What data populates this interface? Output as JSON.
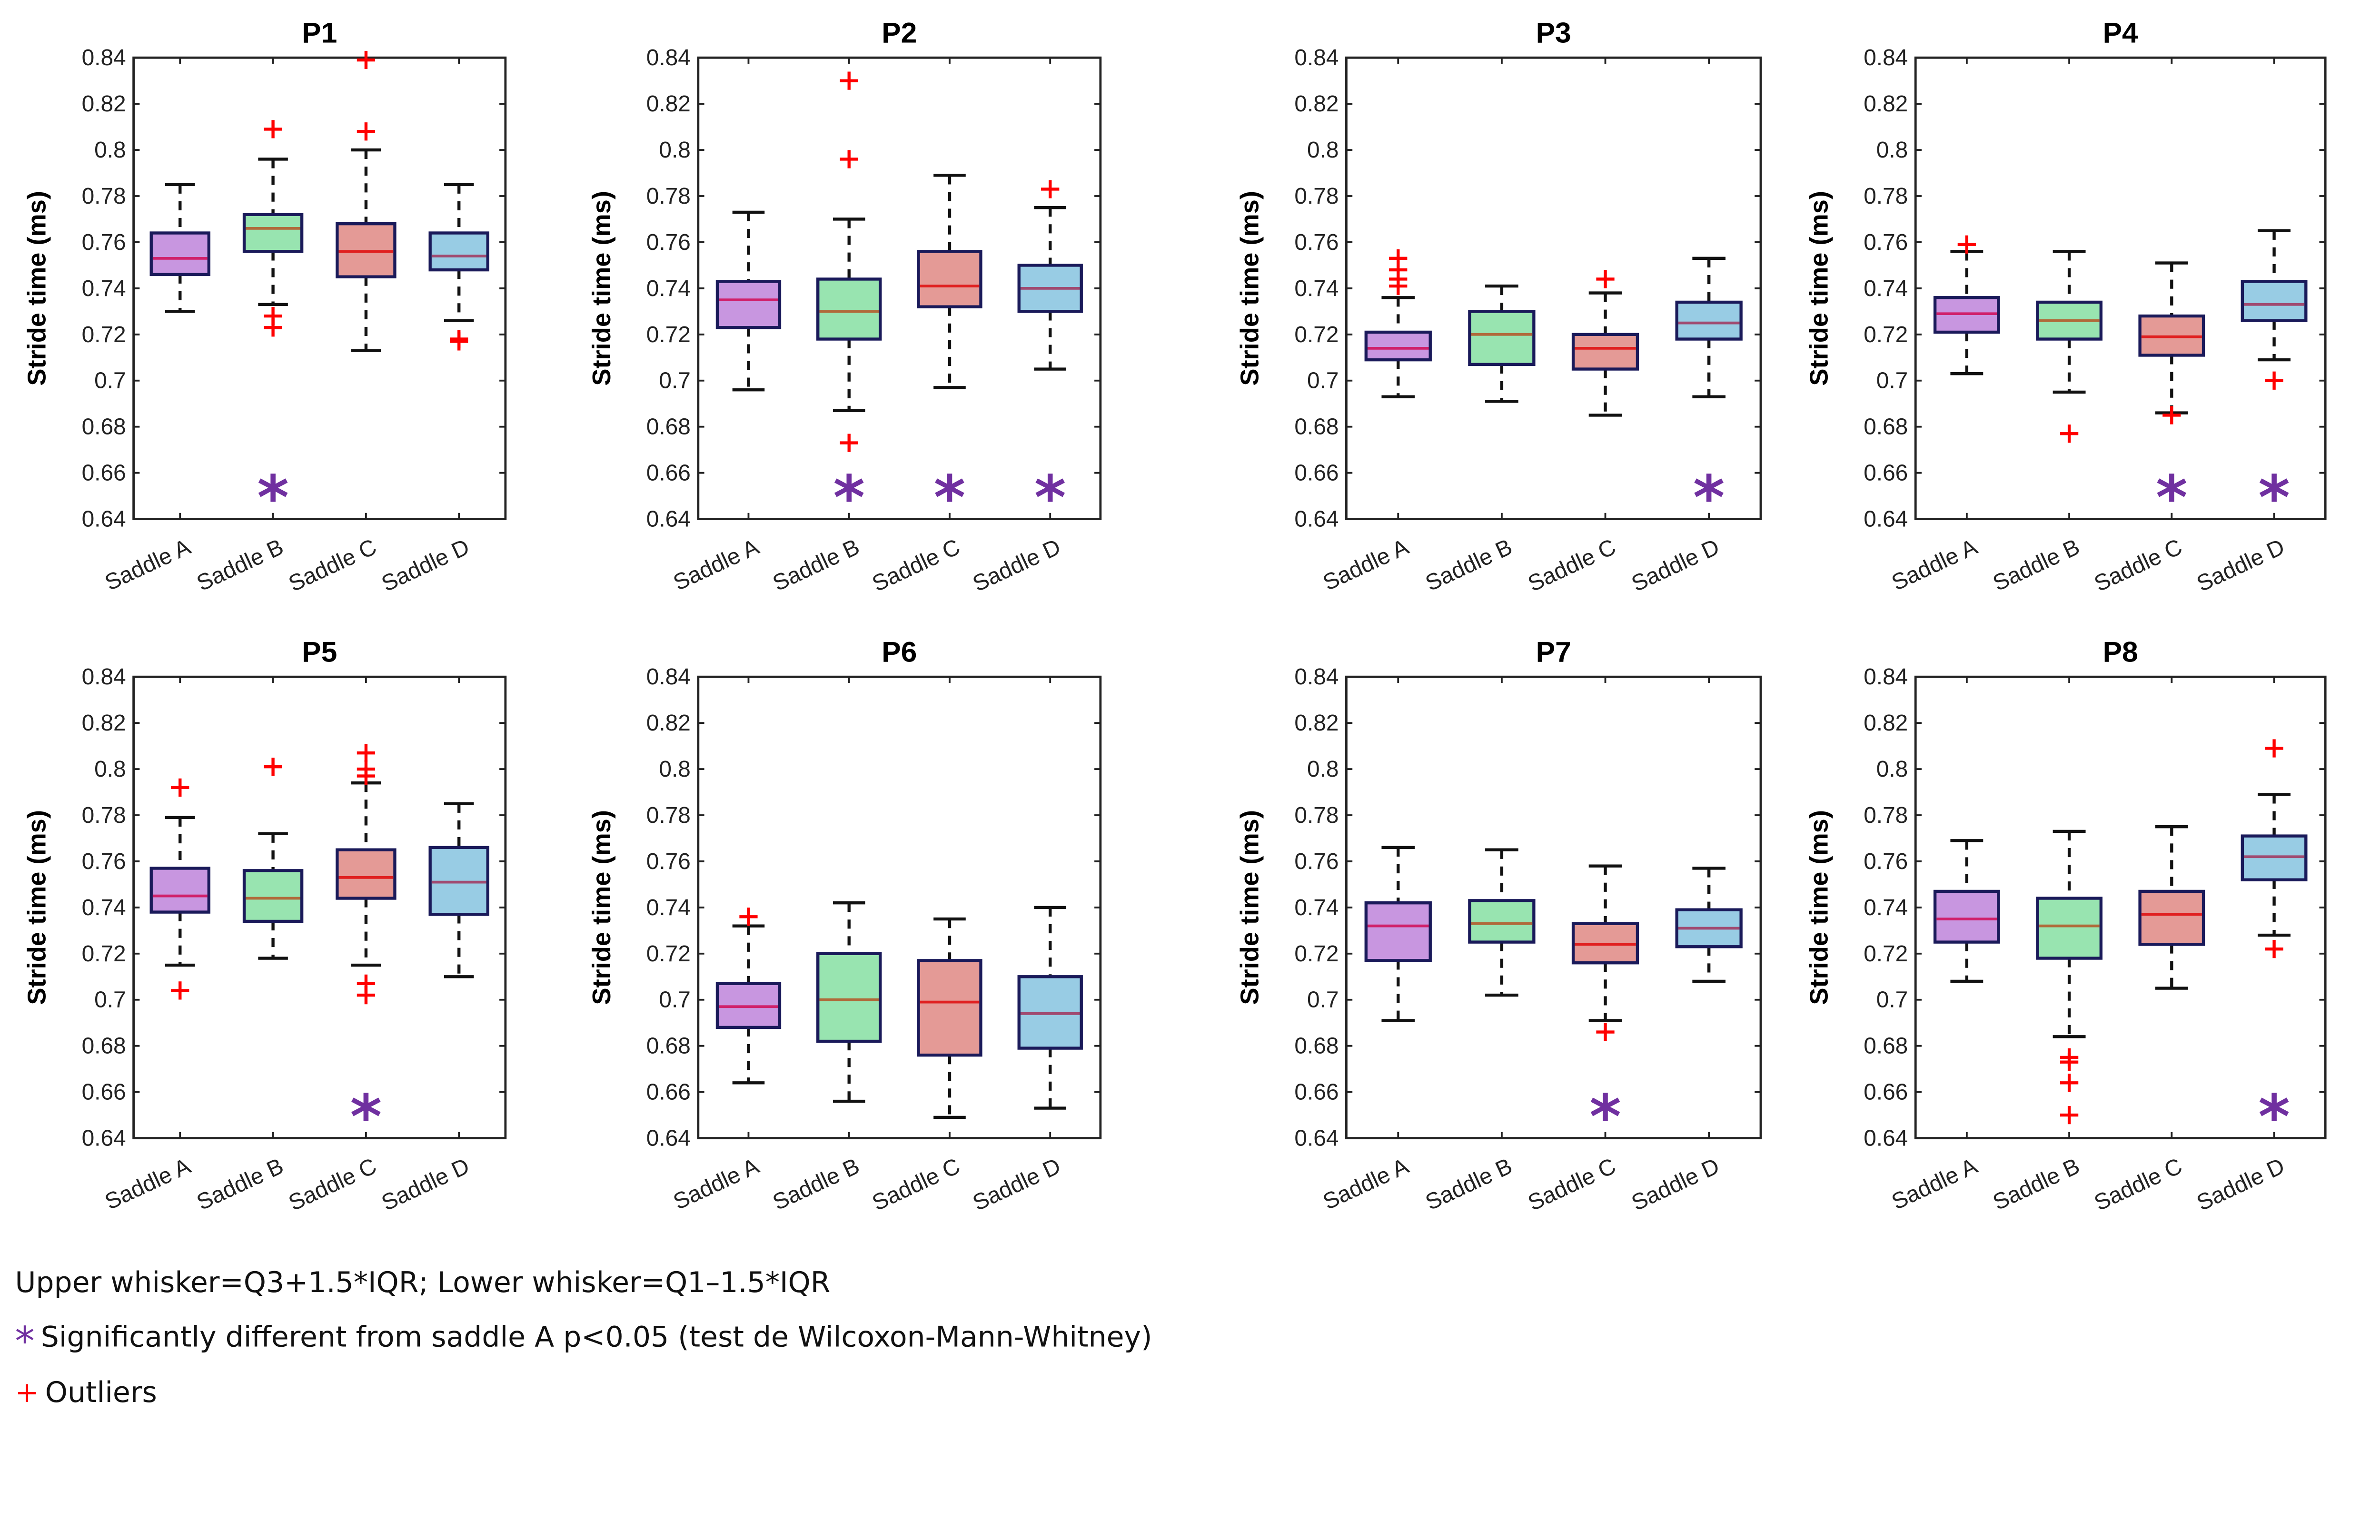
{
  "colors": {
    "box_fill": [
      "#c896e0",
      "#98e4b0",
      "#e49a96",
      "#98cce4"
    ],
    "median": [
      "#d0206a",
      "#b06a3a",
      "#e02020",
      "#a04a70"
    ],
    "box_edge": "#1a1a5a",
    "outlier": "#ff0000",
    "star": "#7030a0"
  },
  "legend": {
    "whisker_text": "Upper whisker=Q3+1.5*IQR; Lower whisker=Q1–1.5*IQR",
    "star_symbol": "*",
    "star_text": "Significantly different from saddle A p<0.05 (test de Wilcoxon-Mann-Whitney)",
    "outlier_symbol": "+",
    "outlier_text": "Outliers"
  },
  "chart_data": [
    {
      "type": "box",
      "title": "P1",
      "ylabel": "Stride time (ms)",
      "ylim": [
        0.64,
        0.84
      ],
      "yticks": [
        "0.64",
        "0.66",
        "0.68",
        "0.7",
        "0.72",
        "0.74",
        "0.76",
        "0.78",
        "0.8",
        "0.82",
        "0.84"
      ],
      "categories": [
        "Saddle A",
        "Saddle B",
        "Saddle C",
        "Saddle D"
      ],
      "boxes": [
        {
          "low": 0.73,
          "q1": 0.746,
          "median": 0.753,
          "q3": 0.764,
          "high": 0.785,
          "outliers": [],
          "significant": false
        },
        {
          "low": 0.733,
          "q1": 0.756,
          "median": 0.766,
          "q3": 0.772,
          "high": 0.796,
          "outliers": [
            0.809,
            0.728,
            0.723
          ],
          "significant": true
        },
        {
          "low": 0.713,
          "q1": 0.745,
          "median": 0.756,
          "q3": 0.768,
          "high": 0.8,
          "outliers": [
            0.839,
            0.808
          ],
          "significant": false
        },
        {
          "low": 0.726,
          "q1": 0.748,
          "median": 0.754,
          "q3": 0.764,
          "high": 0.785,
          "outliers": [
            0.718,
            0.717
          ],
          "significant": false
        }
      ]
    },
    {
      "type": "box",
      "title": "P2",
      "ylabel": "Stride time (ms)",
      "ylim": [
        0.64,
        0.84
      ],
      "yticks": [
        "0.64",
        "0.66",
        "0.68",
        "0.7",
        "0.72",
        "0.74",
        "0.76",
        "0.78",
        "0.8",
        "0.82",
        "0.84"
      ],
      "categories": [
        "Saddle A",
        "Saddle B",
        "Saddle C",
        "Saddle D"
      ],
      "boxes": [
        {
          "low": 0.696,
          "q1": 0.723,
          "median": 0.735,
          "q3": 0.743,
          "high": 0.773,
          "outliers": [],
          "significant": false
        },
        {
          "low": 0.687,
          "q1": 0.718,
          "median": 0.73,
          "q3": 0.744,
          "high": 0.77,
          "outliers": [
            0.83,
            0.796,
            0.673
          ],
          "significant": true
        },
        {
          "low": 0.697,
          "q1": 0.732,
          "median": 0.741,
          "q3": 0.756,
          "high": 0.789,
          "outliers": [],
          "significant": true
        },
        {
          "low": 0.705,
          "q1": 0.73,
          "median": 0.74,
          "q3": 0.75,
          "high": 0.775,
          "outliers": [
            0.783
          ],
          "significant": true
        }
      ]
    },
    {
      "type": "box",
      "title": "P3",
      "ylabel": "Stride time (ms)",
      "ylim": [
        0.64,
        0.84
      ],
      "yticks": [
        "0.64",
        "0.66",
        "0.68",
        "0.7",
        "0.72",
        "0.74",
        "0.76",
        "0.78",
        "0.8",
        "0.82",
        "0.84"
      ],
      "categories": [
        "Saddle A",
        "Saddle B",
        "Saddle C",
        "Saddle D"
      ],
      "boxes": [
        {
          "low": 0.693,
          "q1": 0.709,
          "median": 0.714,
          "q3": 0.721,
          "high": 0.736,
          "outliers": [
            0.753,
            0.748,
            0.744,
            0.741
          ],
          "significant": false
        },
        {
          "low": 0.691,
          "q1": 0.707,
          "median": 0.72,
          "q3": 0.73,
          "high": 0.741,
          "outliers": [],
          "significant": false
        },
        {
          "low": 0.685,
          "q1": 0.705,
          "median": 0.714,
          "q3": 0.72,
          "high": 0.738,
          "outliers": [
            0.744
          ],
          "significant": false
        },
        {
          "low": 0.693,
          "q1": 0.718,
          "median": 0.725,
          "q3": 0.734,
          "high": 0.753,
          "outliers": [],
          "significant": true
        }
      ]
    },
    {
      "type": "box",
      "title": "P4",
      "ylabel": "Stride time (ms)",
      "ylim": [
        0.64,
        0.84
      ],
      "yticks": [
        "0.64",
        "0.66",
        "0.68",
        "0.7",
        "0.72",
        "0.74",
        "0.76",
        "0.78",
        "0.8",
        "0.82",
        "0.84"
      ],
      "categories": [
        "Saddle A",
        "Saddle B",
        "Saddle C",
        "Saddle D"
      ],
      "boxes": [
        {
          "low": 0.703,
          "q1": 0.721,
          "median": 0.729,
          "q3": 0.736,
          "high": 0.756,
          "outliers": [
            0.759
          ],
          "significant": false
        },
        {
          "low": 0.695,
          "q1": 0.718,
          "median": 0.726,
          "q3": 0.734,
          "high": 0.756,
          "outliers": [
            0.677
          ],
          "significant": false
        },
        {
          "low": 0.686,
          "q1": 0.711,
          "median": 0.719,
          "q3": 0.728,
          "high": 0.751,
          "outliers": [
            0.685
          ],
          "significant": true
        },
        {
          "low": 0.709,
          "q1": 0.726,
          "median": 0.733,
          "q3": 0.743,
          "high": 0.765,
          "outliers": [
            0.7
          ],
          "significant": true
        }
      ]
    },
    {
      "type": "box",
      "title": "P5",
      "ylabel": "Stride time (ms)",
      "ylim": [
        0.64,
        0.84
      ],
      "yticks": [
        "0.64",
        "0.66",
        "0.68",
        "0.7",
        "0.72",
        "0.74",
        "0.76",
        "0.78",
        "0.8",
        "0.82",
        "0.84"
      ],
      "categories": [
        "Saddle A",
        "Saddle B",
        "Saddle C",
        "Saddle D"
      ],
      "boxes": [
        {
          "low": 0.715,
          "q1": 0.738,
          "median": 0.745,
          "q3": 0.757,
          "high": 0.779,
          "outliers": [
            0.792,
            0.704
          ],
          "significant": false
        },
        {
          "low": 0.718,
          "q1": 0.734,
          "median": 0.744,
          "q3": 0.756,
          "high": 0.772,
          "outliers": [
            0.801
          ],
          "significant": false
        },
        {
          "low": 0.715,
          "q1": 0.744,
          "median": 0.753,
          "q3": 0.765,
          "high": 0.794,
          "outliers": [
            0.807,
            0.8,
            0.797,
            0.707,
            0.702
          ],
          "significant": true
        },
        {
          "low": 0.71,
          "q1": 0.737,
          "median": 0.751,
          "q3": 0.766,
          "high": 0.785,
          "outliers": [],
          "significant": false
        }
      ]
    },
    {
      "type": "box",
      "title": "P6",
      "ylabel": "Stride time (ms)",
      "ylim": [
        0.64,
        0.84
      ],
      "yticks": [
        "0.64",
        "0.66",
        "0.68",
        "0.7",
        "0.72",
        "0.74",
        "0.76",
        "0.78",
        "0.8",
        "0.82",
        "0.84"
      ],
      "categories": [
        "Saddle A",
        "Saddle B",
        "Saddle C",
        "Saddle D"
      ],
      "boxes": [
        {
          "low": 0.664,
          "q1": 0.688,
          "median": 0.697,
          "q3": 0.707,
          "high": 0.732,
          "outliers": [
            0.736
          ],
          "significant": false
        },
        {
          "low": 0.656,
          "q1": 0.682,
          "median": 0.7,
          "q3": 0.72,
          "high": 0.742,
          "outliers": [],
          "significant": false
        },
        {
          "low": 0.649,
          "q1": 0.676,
          "median": 0.699,
          "q3": 0.717,
          "high": 0.735,
          "outliers": [],
          "significant": false
        },
        {
          "low": 0.653,
          "q1": 0.679,
          "median": 0.694,
          "q3": 0.71,
          "high": 0.74,
          "outliers": [],
          "significant": false
        }
      ]
    },
    {
      "type": "box",
      "title": "P7",
      "ylabel": "Stride time (ms)",
      "ylim": [
        0.64,
        0.84
      ],
      "yticks": [
        "0.64",
        "0.66",
        "0.68",
        "0.7",
        "0.72",
        "0.74",
        "0.76",
        "0.78",
        "0.8",
        "0.82",
        "0.84"
      ],
      "categories": [
        "Saddle A",
        "Saddle B",
        "Saddle C",
        "Saddle D"
      ],
      "boxes": [
        {
          "low": 0.691,
          "q1": 0.717,
          "median": 0.732,
          "q3": 0.742,
          "high": 0.766,
          "outliers": [],
          "significant": false
        },
        {
          "low": 0.702,
          "q1": 0.725,
          "median": 0.733,
          "q3": 0.743,
          "high": 0.765,
          "outliers": [],
          "significant": false
        },
        {
          "low": 0.691,
          "q1": 0.716,
          "median": 0.724,
          "q3": 0.733,
          "high": 0.758,
          "outliers": [
            0.686
          ],
          "significant": true
        },
        {
          "low": 0.708,
          "q1": 0.723,
          "median": 0.731,
          "q3": 0.739,
          "high": 0.757,
          "outliers": [],
          "significant": false
        }
      ]
    },
    {
      "type": "box",
      "title": "P8",
      "ylabel": "Stride time (ms)",
      "ylim": [
        0.64,
        0.84
      ],
      "yticks": [
        "0.64",
        "0.66",
        "0.68",
        "0.7",
        "0.72",
        "0.74",
        "0.76",
        "0.78",
        "0.8",
        "0.82",
        "0.84"
      ],
      "categories": [
        "Saddle A",
        "Saddle B",
        "Saddle C",
        "Saddle D"
      ],
      "boxes": [
        {
          "low": 0.708,
          "q1": 0.725,
          "median": 0.735,
          "q3": 0.747,
          "high": 0.769,
          "outliers": [],
          "significant": false
        },
        {
          "low": 0.684,
          "q1": 0.718,
          "median": 0.732,
          "q3": 0.744,
          "high": 0.773,
          "outliers": [
            0.675,
            0.673,
            0.664,
            0.65
          ],
          "significant": false
        },
        {
          "low": 0.705,
          "q1": 0.724,
          "median": 0.737,
          "q3": 0.747,
          "high": 0.775,
          "outliers": [],
          "significant": false
        },
        {
          "low": 0.728,
          "q1": 0.752,
          "median": 0.762,
          "q3": 0.771,
          "high": 0.789,
          "outliers": [
            0.809,
            0.722
          ],
          "significant": true
        }
      ]
    }
  ]
}
